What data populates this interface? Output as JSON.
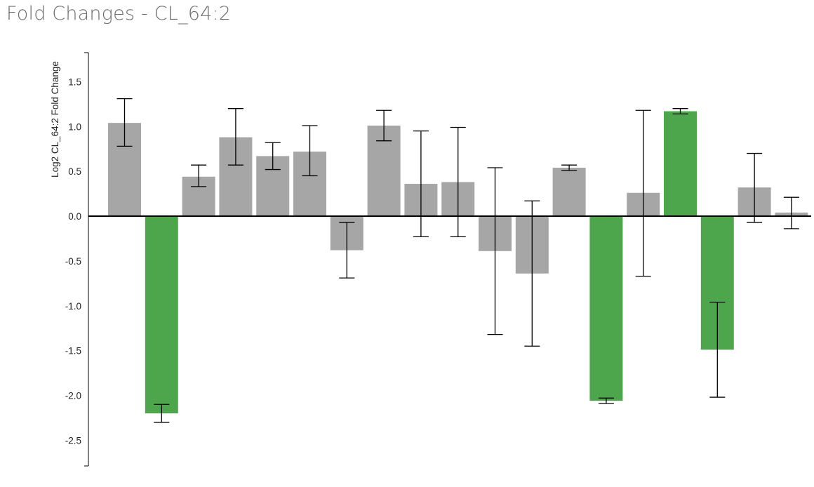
{
  "page": {
    "title": "Fold Changes - CL_64:2"
  },
  "chart_data": {
    "type": "bar",
    "title": "Fold Changes - CL_64:2",
    "xlabel": "",
    "ylabel": "Log2 CL_64:2 Fold Change",
    "ylim": [
      -2.8,
      1.8
    ],
    "yticks": [
      1.5,
      1.0,
      0.5,
      0.0,
      -0.5,
      -1.0,
      -1.5,
      -2.0,
      -2.5
    ],
    "ytick_labels": [
      "1.5",
      "1.0",
      "0.5",
      "0.0",
      "-0.5",
      "-1.0",
      "-1.5",
      "-2.0",
      "-2.5"
    ],
    "grid": false,
    "colors": {
      "default": "#a6a6a6",
      "highlight": "#4ea64c",
      "axis": "#000000"
    },
    "values": [
      1.04,
      -2.2,
      0.44,
      0.88,
      0.67,
      0.72,
      -0.38,
      1.01,
      0.36,
      0.38,
      -0.39,
      -0.64,
      0.54,
      -2.06,
      0.26,
      1.17,
      -1.49,
      0.32,
      0.04
    ],
    "err_low": [
      0.78,
      -2.3,
      0.33,
      0.57,
      0.52,
      0.45,
      -0.69,
      0.84,
      -0.23,
      -0.23,
      -1.32,
      -1.45,
      0.51,
      -2.09,
      -0.67,
      1.14,
      -2.02,
      -0.07,
      -0.14
    ],
    "err_high": [
      1.31,
      -2.1,
      0.57,
      1.2,
      0.82,
      1.01,
      -0.07,
      1.18,
      0.95,
      0.99,
      0.54,
      0.17,
      0.57,
      -2.03,
      1.18,
      1.2,
      -0.96,
      0.7,
      0.21
    ],
    "highlight": [
      false,
      true,
      false,
      false,
      false,
      false,
      false,
      false,
      false,
      false,
      false,
      false,
      false,
      true,
      false,
      true,
      true,
      false,
      false
    ]
  }
}
